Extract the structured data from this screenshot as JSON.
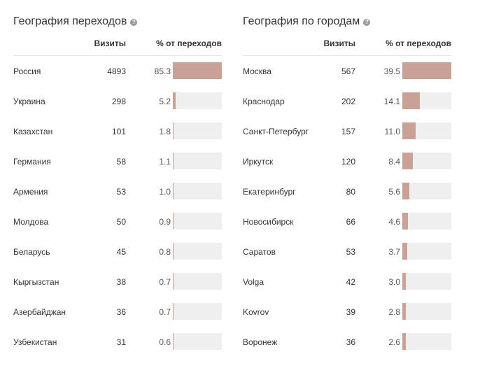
{
  "countries": {
    "title": "География переходов",
    "help_icon": "question-circle-icon",
    "col_visits": "Визиты",
    "col_percent": "% от переходов",
    "max_percent": 85.3,
    "rows": [
      {
        "name": "Россия",
        "visits": "4893",
        "percent": "85.3"
      },
      {
        "name": "Украина",
        "visits": "298",
        "percent": "5.2"
      },
      {
        "name": "Казахстан",
        "visits": "101",
        "percent": "1.8"
      },
      {
        "name": "Германия",
        "visits": "58",
        "percent": "1.1"
      },
      {
        "name": "Армения",
        "visits": "53",
        "percent": "1.0"
      },
      {
        "name": "Молдова",
        "visits": "50",
        "percent": "0.9"
      },
      {
        "name": "Беларусь",
        "visits": "45",
        "percent": "0.8"
      },
      {
        "name": "Кыргызстан",
        "visits": "38",
        "percent": "0.7"
      },
      {
        "name": "Азербайджан",
        "visits": "36",
        "percent": "0.7"
      },
      {
        "name": "Узбекистан",
        "visits": "31",
        "percent": "0.6"
      }
    ]
  },
  "cities": {
    "title": "География по городам",
    "help_icon": "question-circle-icon",
    "col_visits": "Визиты",
    "col_percent": "% от переходов",
    "max_percent": 39.5,
    "rows": [
      {
        "name": "Москва",
        "visits": "567",
        "percent": "39.5"
      },
      {
        "name": "Краснодар",
        "visits": "202",
        "percent": "14.1"
      },
      {
        "name": "Санкт-Петербург",
        "visits": "157",
        "percent": "11.0"
      },
      {
        "name": "Иркутск",
        "visits": "120",
        "percent": "8.4"
      },
      {
        "name": "Екатеринбург",
        "visits": "80",
        "percent": "5.6"
      },
      {
        "name": "Новосибирск",
        "visits": "66",
        "percent": "4.6"
      },
      {
        "name": "Саратов",
        "visits": "53",
        "percent": "3.7"
      },
      {
        "name": "Volga",
        "visits": "42",
        "percent": "3.0"
      },
      {
        "name": "Kovrov",
        "visits": "39",
        "percent": "2.8"
      },
      {
        "name": "Воронеж",
        "visits": "36",
        "percent": "2.6"
      }
    ]
  },
  "colors": {
    "bar_fill": "#c9a196",
    "bar_track": "#efefef"
  }
}
